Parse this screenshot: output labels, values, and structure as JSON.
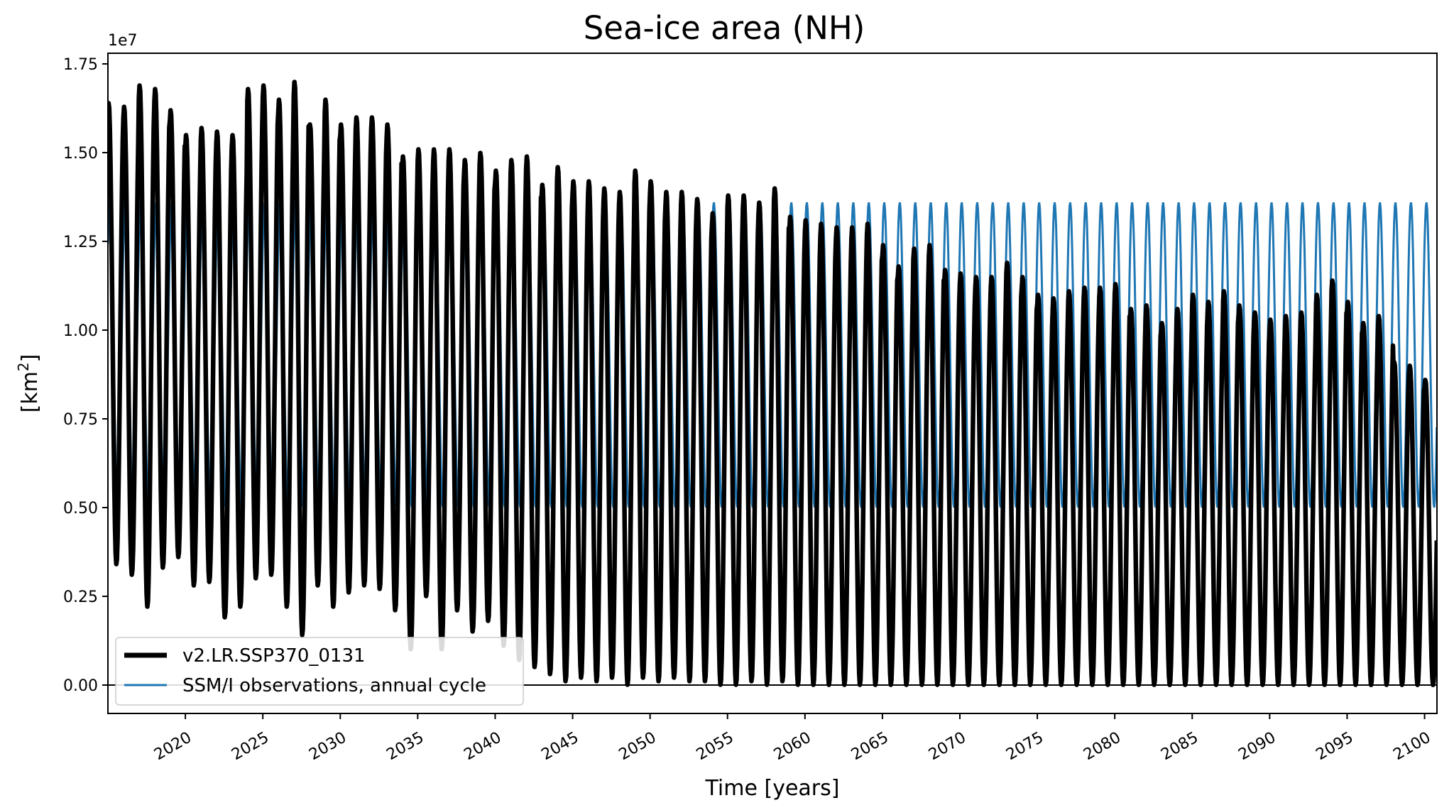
{
  "chart_data": {
    "type": "line",
    "title": "Sea-ice area (NH)",
    "xlabel": "Time [years]",
    "ylabel_main": "[km",
    "ylabel_sup": "2",
    "ylabel_close": "]",
    "y_offset_label": "1e7",
    "xlim": [
      2015,
      2100.8
    ],
    "ylim": [
      -0.08,
      1.78
    ],
    "y_ticks": [
      0.0,
      0.25,
      0.5,
      0.75,
      1.0,
      1.25,
      1.5,
      1.75
    ],
    "y_tick_labels": [
      "0.00",
      "0.25",
      "0.50",
      "0.75",
      "1.00",
      "1.25",
      "1.50",
      "1.75"
    ],
    "x_ticks": [
      2020,
      2025,
      2030,
      2035,
      2040,
      2045,
      2050,
      2055,
      2060,
      2065,
      2070,
      2075,
      2080,
      2085,
      2090,
      2095,
      2100
    ],
    "x_tick_labels": [
      "2020",
      "2025",
      "2030",
      "2035",
      "2040",
      "2045",
      "2050",
      "2055",
      "2060",
      "2065",
      "2070",
      "2075",
      "2080",
      "2085",
      "2090",
      "2095",
      "2100"
    ],
    "hline": 0,
    "legend": {
      "placement": "lower-left"
    },
    "series": [
      {
        "name": "v2.LR.SSP370_0131",
        "color": "#000000",
        "note": "annual maxima (winter) and minima (summer) per model year, units of 1e7 km2",
        "years": [
          2015,
          2016,
          2017,
          2018,
          2019,
          2020,
          2021,
          2022,
          2023,
          2024,
          2025,
          2026,
          2027,
          2028,
          2029,
          2030,
          2031,
          2032,
          2033,
          2034,
          2035,
          2036,
          2037,
          2038,
          2039,
          2040,
          2041,
          2042,
          2043,
          2044,
          2045,
          2046,
          2047,
          2048,
          2049,
          2050,
          2051,
          2052,
          2053,
          2054,
          2055,
          2056,
          2057,
          2058,
          2059,
          2060,
          2061,
          2062,
          2063,
          2064,
          2065,
          2066,
          2067,
          2068,
          2069,
          2070,
          2071,
          2072,
          2073,
          2074,
          2075,
          2076,
          2077,
          2078,
          2079,
          2080,
          2081,
          2082,
          2083,
          2084,
          2085,
          2086,
          2087,
          2088,
          2089,
          2090,
          2091,
          2092,
          2093,
          2094,
          2095,
          2096,
          2097,
          2098,
          2099,
          2100
        ],
        "maxima": [
          1.64,
          1.63,
          1.69,
          1.68,
          1.62,
          1.55,
          1.57,
          1.56,
          1.55,
          1.68,
          1.69,
          1.65,
          1.7,
          1.58,
          1.65,
          1.58,
          1.6,
          1.6,
          1.58,
          1.49,
          1.51,
          1.51,
          1.51,
          1.48,
          1.5,
          1.45,
          1.48,
          1.49,
          1.41,
          1.46,
          1.42,
          1.42,
          1.4,
          1.39,
          1.45,
          1.42,
          1.39,
          1.39,
          1.37,
          1.33,
          1.38,
          1.38,
          1.36,
          1.4,
          1.32,
          1.31,
          1.3,
          1.29,
          1.29,
          1.3,
          1.24,
          1.18,
          1.23,
          1.24,
          1.17,
          1.16,
          1.15,
          1.15,
          1.19,
          1.15,
          1.1,
          1.09,
          1.11,
          1.12,
          1.12,
          1.13,
          1.06,
          1.07,
          1.02,
          1.06,
          1.1,
          1.08,
          1.11,
          1.07,
          1.05,
          1.03,
          1.04,
          1.05,
          1.1,
          1.14,
          1.08,
          1.02,
          1.04,
          0.91,
          0.9,
          0.86
        ],
        "minima": [
          0.34,
          0.31,
          0.22,
          0.33,
          0.36,
          0.28,
          0.29,
          0.19,
          0.22,
          0.3,
          0.31,
          0.22,
          0.14,
          0.28,
          0.22,
          0.26,
          0.28,
          0.27,
          0.21,
          0.1,
          0.25,
          0.1,
          0.21,
          0.15,
          0.18,
          0.11,
          0.07,
          0.05,
          0.03,
          0.01,
          0.02,
          0.01,
          0.02,
          0.0,
          0.02,
          0.01,
          0.02,
          0.01,
          0.01,
          0.0,
          0.0,
          0.01,
          0.0,
          0.01,
          0.0,
          0.0,
          0.0,
          0.0,
          0.0,
          0.0,
          0.0,
          0.0,
          0.0,
          0.0,
          0.0,
          0.0,
          0.0,
          0.0,
          0.0,
          0.0,
          0.0,
          0.0,
          0.0,
          0.0,
          0.0,
          0.0,
          0.0,
          0.0,
          0.0,
          0.0,
          0.0,
          0.0,
          0.0,
          0.0,
          0.0,
          0.0,
          0.0,
          0.0,
          0.0,
          0.0,
          0.0,
          0.0,
          0.0,
          0.0,
          0.0,
          0.0
        ]
      },
      {
        "name": "SSM/I observations, annual cycle",
        "color": "#1f77b4",
        "note": "repeated climatological annual cycle, units of 1e7 km2",
        "annual_max": 1.36,
        "annual_min": 0.5
      }
    ]
  }
}
